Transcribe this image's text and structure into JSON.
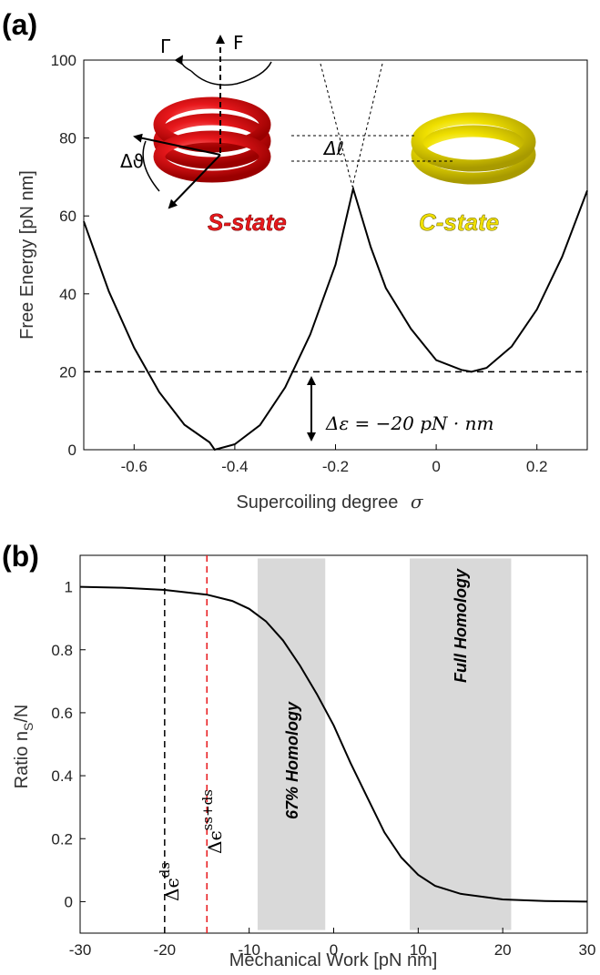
{
  "colors": {
    "red": "#e8181c",
    "yellow": "#f0e000",
    "band": "#d9d9d9",
    "curve": "#000000"
  },
  "panel_a": {
    "label": "(a)",
    "xlabel": "Supercoiling degree",
    "xlabel_symbol": "σ",
    "ylabel": "Free Energy [pN nm]",
    "xticks": [
      "-0.6",
      "-0.4",
      "-0.2",
      "0",
      "0.2"
    ],
    "yticks": [
      "0",
      "20",
      "40",
      "60",
      "80",
      "100"
    ],
    "s_state": "S-state",
    "c_state": "C-state",
    "delta_eps": "Δε = −20 pN · nm",
    "gamma_label": "Γ",
    "force_label": "F",
    "delta_theta": "Δϑ",
    "delta_ell": "Δℓ"
  },
  "panel_b": {
    "label": "(b)",
    "xlabel": "Mechanical Work [pN nm]",
    "ylabel": "Ratio  n",
    "ylabel_sub": "S",
    "ylabel_tail": "/N",
    "xticks": [
      "-30",
      "-20",
      "-10",
      "0",
      "10",
      "20",
      "30"
    ],
    "yticks": [
      "0",
      "0.2",
      "0.4",
      "0.6",
      "0.8",
      "1"
    ],
    "band1_label": "67% Homology",
    "band2_label": "Full Homology",
    "vline_black_label": "Δϵ",
    "vline_black_sup": "ds",
    "vline_red_label": "Δϵ",
    "vline_red_sup": "ss+ds"
  },
  "chart_data": [
    {
      "type": "line",
      "title": "",
      "xlabel": "Supercoiling degree σ",
      "ylabel": "Free Energy [pN nm]",
      "xlim": [
        -0.7,
        0.3
      ],
      "ylim": [
        0,
        100
      ],
      "series": [
        {
          "values_x": [
            -0.7,
            -0.65,
            -0.6,
            -0.55,
            -0.5,
            -0.45,
            -0.44,
            -0.4,
            -0.35,
            -0.3,
            -0.25,
            -0.2,
            -0.165,
            -0.13,
            -0.1,
            -0.05,
            0,
            0.05,
            0.07,
            0.1,
            0.15,
            0.2,
            0.25,
            0.3
          ],
          "values_y": [
            58.6,
            40.6,
            26.2,
            14.8,
            6.4,
            1.9,
            0.0,
            1.4,
            6.3,
            16.0,
            29.6,
            47.5,
            67.0,
            52.0,
            41.5,
            31.0,
            23.0,
            20.5,
            20.0,
            21.0,
            26.5,
            36.0,
            49.5,
            66.5
          ]
        }
      ],
      "reference_line_y": 20
    },
    {
      "type": "line",
      "title": "",
      "xlabel": "Mechanical Work [pN nm]",
      "ylabel": "Ratio nS/N",
      "xlim": [
        -30,
        30
      ],
      "ylim": [
        -0.1,
        1.1
      ],
      "series": [
        {
          "x": [
            -30,
            -25,
            -20,
            -15,
            -12,
            -10,
            -8,
            -6,
            -4,
            -2,
            0,
            2,
            4,
            6,
            8,
            10,
            12,
            15,
            20,
            25,
            30
          ],
          "y": [
            1.0,
            0.997,
            0.99,
            0.975,
            0.955,
            0.93,
            0.89,
            0.83,
            0.75,
            0.66,
            0.56,
            0.44,
            0.33,
            0.22,
            0.14,
            0.085,
            0.05,
            0.025,
            0.007,
            0.002,
            0.0
          ]
        }
      ],
      "vlines": [
        {
          "x": -20,
          "color": "#000000",
          "label": "Δϵ ds"
        },
        {
          "x": -15,
          "color": "#e8181c",
          "label": "Δϵ ss+ds"
        }
      ],
      "bands": [
        {
          "x0": -9,
          "x1": -1,
          "label": "67% Homology"
        },
        {
          "x0": 9,
          "x1": 21,
          "label": "Full Homology"
        }
      ]
    }
  ]
}
